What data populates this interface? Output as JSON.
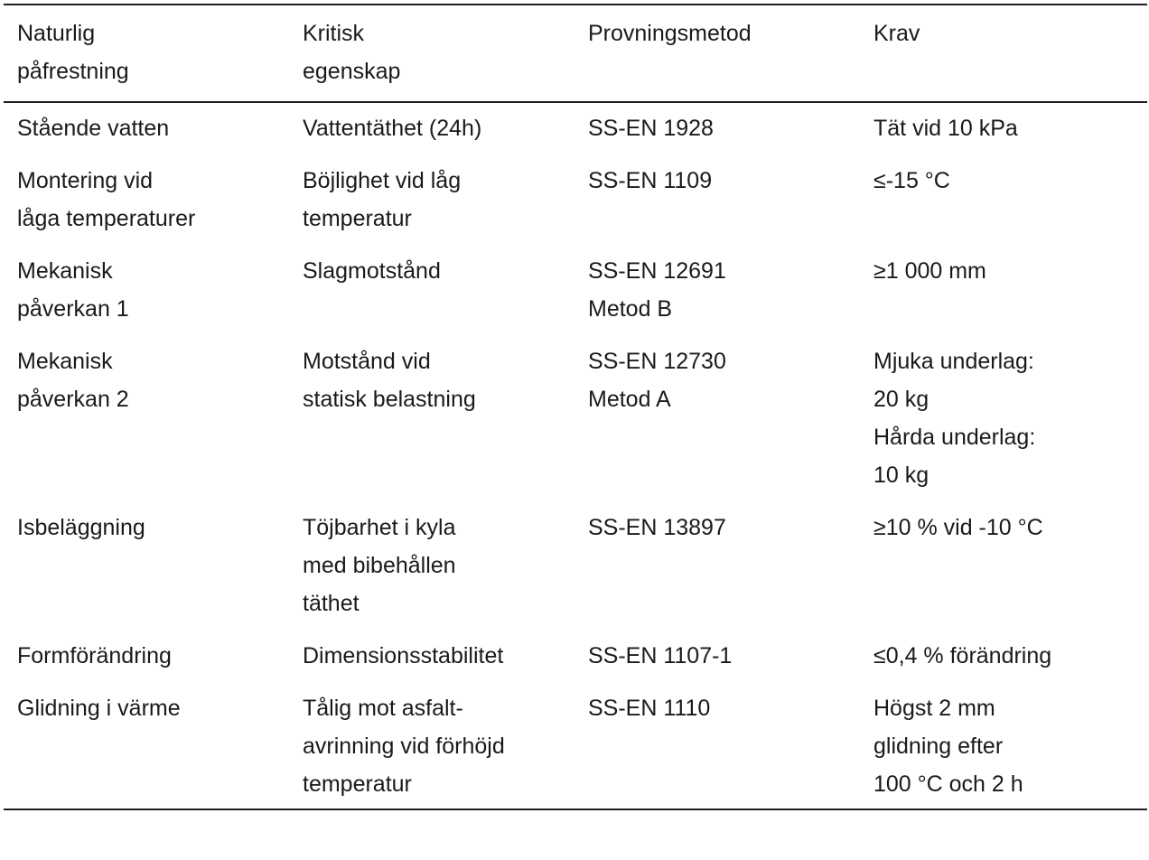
{
  "table": {
    "headers": [
      "Naturlig\npåfrestning",
      "Kritisk\negenskap",
      "Provningsmetod",
      "Krav"
    ],
    "rows": [
      [
        "Stående vatten",
        "Vattentäthet (24h)",
        "SS-EN 1928",
        "Tät vid 10 kPa"
      ],
      [
        "Montering vid\nlåga temperaturer",
        "Böjlighet vid låg\ntemperatur",
        "SS-EN 1109",
        "≤-15 °C"
      ],
      [
        "Mekanisk\npåverkan 1",
        "Slagmotstånd",
        "SS-EN 12691\nMetod B",
        "≥1 000 mm"
      ],
      [
        "Mekanisk\npåverkan 2",
        "Motstånd vid\nstatisk belastning",
        "SS-EN 12730\nMetod A",
        "Mjuka underlag:\n20 kg\nHårda underlag:\n10 kg"
      ],
      [
        "Isbeläggning",
        "Töjbarhet i kyla\nmed bibehållen\ntäthet",
        "SS-EN 13897",
        "≥10 % vid -10 °C"
      ],
      [
        "Formförändring",
        "Dimensionsstabilitet",
        "SS-EN 1107-1",
        "≤0,4 % förändring"
      ],
      [
        "Glidning i värme",
        "Tålig mot asfalt-\navrinning vid förhöjd\ntemperatur",
        "SS-EN 1110",
        "Högst 2 mm\nglidning efter\n100 °C och 2 h"
      ]
    ]
  }
}
